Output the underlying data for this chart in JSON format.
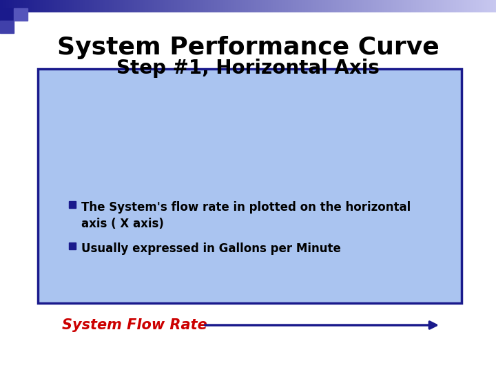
{
  "title_line1": "System Performance Curve",
  "title_line2": "Step #1, Horizontal Axis",
  "title_fontsize": 26,
  "subtitle_fontsize": 20,
  "bg_color": "#ffffff",
  "box_facecolor": "#aac4f0",
  "box_edgecolor": "#1a1a8c",
  "bullet1": "The System's flow rate in plotted on the horizontal\naxis ( X axis)",
  "bullet2": "Usually expressed in Gallons per Minute",
  "bullet_fontsize": 12,
  "bullet_color": "#000000",
  "arrow_label": "System Flow Rate",
  "arrow_label_color": "#cc0000",
  "arrow_label_fontsize": 15,
  "arrow_color": "#1a1a8c",
  "square_bullet_color": "#1a1a8c"
}
